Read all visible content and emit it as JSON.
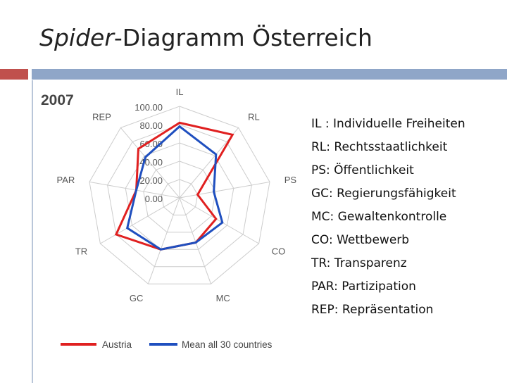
{
  "slide": {
    "title_italic": "Spider",
    "title_rest": "-Diagramm Österreich",
    "accent_red": "#c0504d",
    "accent_blue": "#8fa6c8"
  },
  "chart_data": {
    "type": "radar",
    "title": "2007",
    "axes": [
      "IL",
      "RL",
      "PS",
      "CO",
      "MC",
      "GC",
      "TR",
      "PAR",
      "REP"
    ],
    "r_ticks": [
      "100.00",
      "80.00",
      "60.00",
      "40.00",
      "20.00",
      "0.00"
    ],
    "r_range": [
      0,
      100
    ],
    "grid": true,
    "legend_position": "bottom",
    "series": [
      {
        "name": "Austria",
        "color": "#e02020",
        "values": [
          82,
          90,
          20,
          46,
          52,
          60,
          80,
          48,
          70
        ]
      },
      {
        "name": "Mean all 30 countries",
        "color": "#1f4fbf",
        "values": [
          78,
          62,
          38,
          54,
          52,
          60,
          66,
          48,
          58
        ]
      }
    ]
  },
  "abbreviations": [
    "IL : Individuelle Freiheiten",
    "RL: Rechtsstaatlichkeit",
    "PS: Öffentlichkeit",
    "GC: Regierungsfähigkeit",
    "MC: Gewaltenkontrolle",
    "CO: Wettbewerb",
    "TR: Transparenz",
    "PAR: Partizipation",
    "REP: Repräsentation"
  ]
}
